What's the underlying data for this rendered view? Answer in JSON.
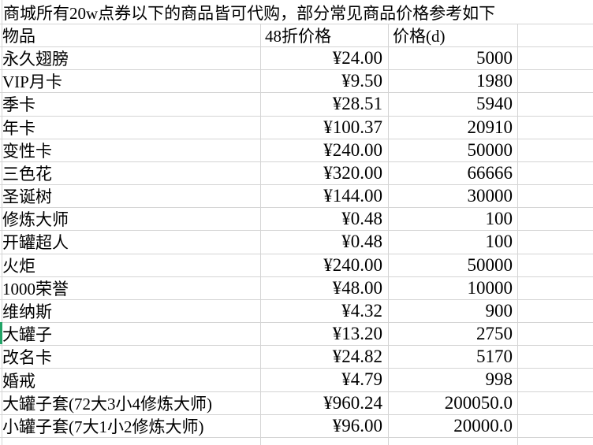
{
  "title": "商城所有20w点券以下的商品皆可代购，部分常见商品价格参考如下",
  "columns": [
    "物品",
    "48折价格",
    "价格(d)"
  ],
  "rows": [
    {
      "name": "永久翅膀",
      "discount_price": "¥24.00",
      "price_d": "5000"
    },
    {
      "name": "VIP月卡",
      "discount_price": "¥9.50",
      "price_d": "1980"
    },
    {
      "name": "季卡",
      "discount_price": "¥28.51",
      "price_d": "5940"
    },
    {
      "name": "年卡",
      "discount_price": "¥100.37",
      "price_d": "20910"
    },
    {
      "name": "变性卡",
      "discount_price": "¥240.00",
      "price_d": "50000"
    },
    {
      "name": "三色花",
      "discount_price": "¥320.00",
      "price_d": "66666"
    },
    {
      "name": "圣诞树",
      "discount_price": "¥144.00",
      "price_d": "30000"
    },
    {
      "name": "修炼大师",
      "discount_price": "¥0.48",
      "price_d": "100"
    },
    {
      "name": "开罐超人",
      "discount_price": "¥0.48",
      "price_d": "100"
    },
    {
      "name": "火炬",
      "discount_price": "¥240.00",
      "price_d": "50000"
    },
    {
      "name": "1000荣誉",
      "discount_price": "¥48.00",
      "price_d": "10000"
    },
    {
      "name": "维纳斯",
      "discount_price": "¥4.32",
      "price_d": "900"
    },
    {
      "name": "大罐子",
      "discount_price": "¥13.20",
      "price_d": "2750"
    },
    {
      "name": "改名卡",
      "discount_price": "¥24.82",
      "price_d": "5170"
    },
    {
      "name": "婚戒",
      "discount_price": "¥4.79",
      "price_d": "998"
    },
    {
      "name": "大罐子套(72大3小4修炼大师)",
      "discount_price": "¥960.24",
      "price_d": "200050.0"
    },
    {
      "name": "小罐子套(7大1小2修炼大师)",
      "discount_price": "¥96.00",
      "price_d": "20000.0"
    }
  ],
  "indicator_row_name": "大罐子",
  "colors": {
    "indicator_green": "#21a366",
    "gridline": "#d4d4d4",
    "text": "#000000",
    "background": "#ffffff"
  }
}
